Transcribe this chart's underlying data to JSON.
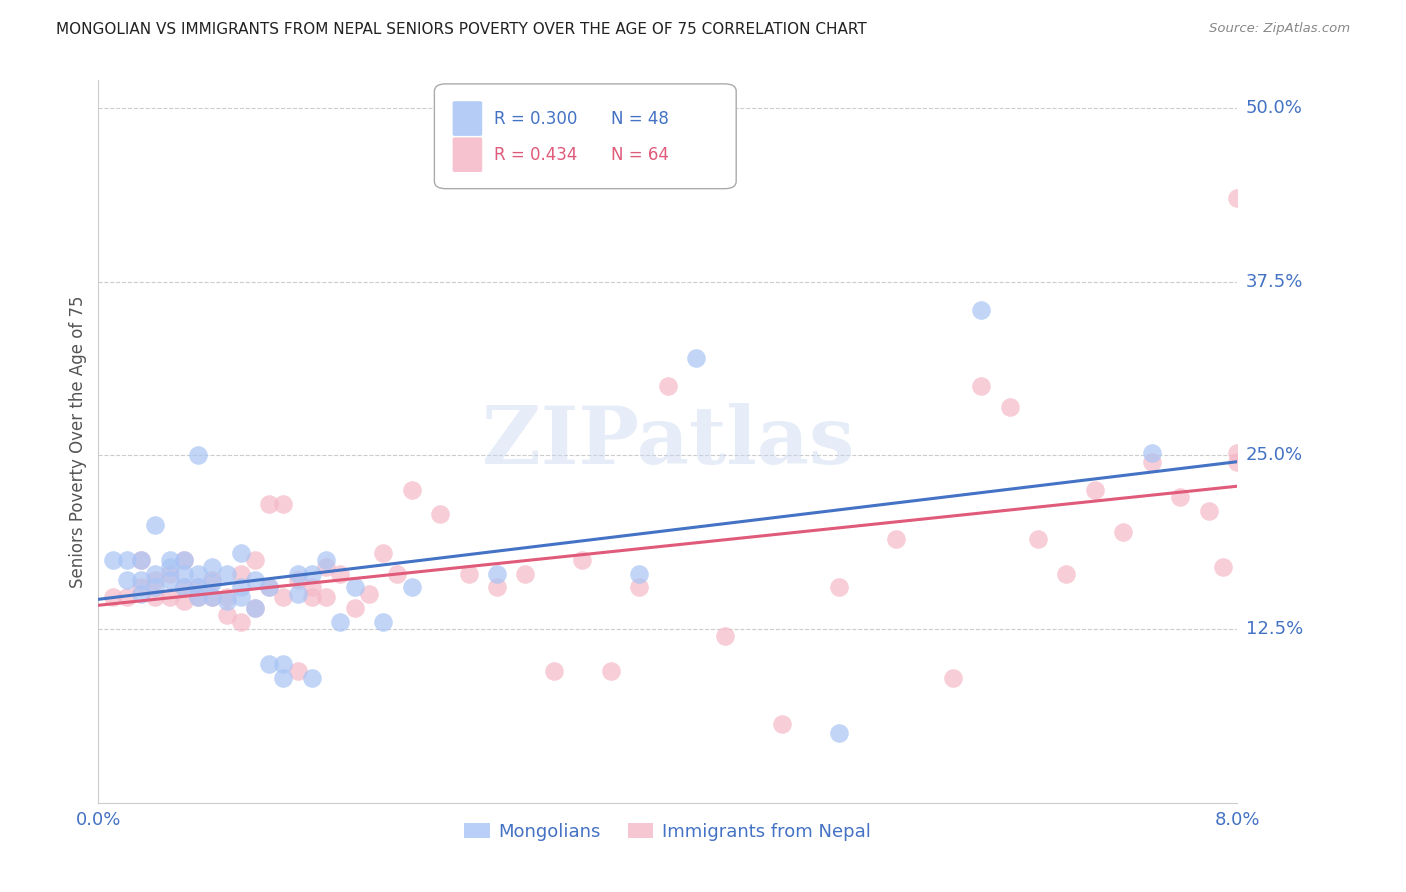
{
  "title": "MONGOLIAN VS IMMIGRANTS FROM NEPAL SENIORS POVERTY OVER THE AGE OF 75 CORRELATION CHART",
  "source": "Source: ZipAtlas.com",
  "ylabel": "Seniors Poverty Over the Age of 75",
  "ytick_labels": [
    "50.0%",
    "37.5%",
    "25.0%",
    "12.5%"
  ],
  "ytick_values": [
    0.5,
    0.375,
    0.25,
    0.125
  ],
  "xlim": [
    0.0,
    0.08
  ],
  "ylim": [
    0.0,
    0.52
  ],
  "legend_blue_r": "R = 0.300",
  "legend_blue_n": "N = 48",
  "legend_pink_r": "R = 0.434",
  "legend_pink_n": "N = 64",
  "legend_label_blue": "Mongolians",
  "legend_label_pink": "Immigrants from Nepal",
  "watermark": "ZIPatlas",
  "blue_color": "#a8c4f5",
  "pink_color": "#f5b8c8",
  "line_blue": "#4472c4",
  "line_pink": "#e05a7a",
  "title_color": "#222222",
  "axis_label_color": "#4472c4",
  "blue_scatter_x": [
    0.001,
    0.002,
    0.002,
    0.003,
    0.003,
    0.003,
    0.004,
    0.004,
    0.004,
    0.005,
    0.005,
    0.005,
    0.006,
    0.006,
    0.006,
    0.007,
    0.007,
    0.007,
    0.007,
    0.008,
    0.008,
    0.008,
    0.009,
    0.009,
    0.01,
    0.01,
    0.01,
    0.011,
    0.011,
    0.012,
    0.012,
    0.013,
    0.013,
    0.014,
    0.014,
    0.015,
    0.015,
    0.016,
    0.017,
    0.018,
    0.02,
    0.022,
    0.028,
    0.038,
    0.042,
    0.052,
    0.062,
    0.074
  ],
  "blue_scatter_y": [
    0.175,
    0.16,
    0.175,
    0.15,
    0.16,
    0.175,
    0.155,
    0.165,
    0.2,
    0.16,
    0.17,
    0.175,
    0.155,
    0.165,
    0.175,
    0.148,
    0.155,
    0.165,
    0.25,
    0.148,
    0.158,
    0.17,
    0.145,
    0.165,
    0.148,
    0.155,
    0.18,
    0.14,
    0.16,
    0.1,
    0.155,
    0.09,
    0.1,
    0.15,
    0.165,
    0.09,
    0.165,
    0.175,
    0.13,
    0.155,
    0.13,
    0.155,
    0.165,
    0.165,
    0.32,
    0.05,
    0.355,
    0.252
  ],
  "pink_scatter_x": [
    0.001,
    0.002,
    0.003,
    0.003,
    0.004,
    0.004,
    0.005,
    0.005,
    0.006,
    0.006,
    0.006,
    0.007,
    0.007,
    0.008,
    0.008,
    0.009,
    0.009,
    0.01,
    0.01,
    0.011,
    0.011,
    0.012,
    0.012,
    0.013,
    0.013,
    0.014,
    0.014,
    0.015,
    0.015,
    0.016,
    0.016,
    0.017,
    0.018,
    0.019,
    0.02,
    0.021,
    0.022,
    0.024,
    0.026,
    0.028,
    0.03,
    0.032,
    0.034,
    0.036,
    0.038,
    0.04,
    0.044,
    0.048,
    0.052,
    0.056,
    0.06,
    0.062,
    0.064,
    0.066,
    0.068,
    0.07,
    0.072,
    0.074,
    0.076,
    0.078,
    0.079,
    0.08,
    0.08,
    0.08
  ],
  "pink_scatter_y": [
    0.148,
    0.148,
    0.155,
    0.175,
    0.148,
    0.16,
    0.148,
    0.165,
    0.145,
    0.155,
    0.175,
    0.148,
    0.155,
    0.148,
    0.16,
    0.135,
    0.148,
    0.13,
    0.165,
    0.14,
    0.175,
    0.215,
    0.155,
    0.215,
    0.148,
    0.16,
    0.095,
    0.155,
    0.148,
    0.17,
    0.148,
    0.165,
    0.14,
    0.15,
    0.18,
    0.165,
    0.225,
    0.208,
    0.165,
    0.155,
    0.165,
    0.095,
    0.175,
    0.095,
    0.155,
    0.3,
    0.12,
    0.057,
    0.155,
    0.19,
    0.09,
    0.3,
    0.285,
    0.19,
    0.165,
    0.225,
    0.195,
    0.245,
    0.22,
    0.21,
    0.17,
    0.245,
    0.252,
    0.435
  ]
}
